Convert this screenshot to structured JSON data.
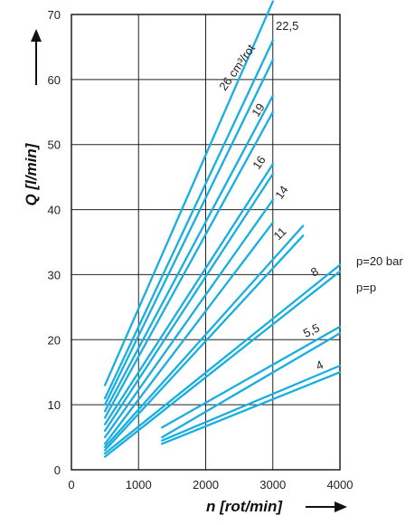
{
  "chart_data": {
    "type": "line",
    "xlabel": "n [rot/min]",
    "ylabel": "Q [l/min]",
    "xlim": [
      0,
      4000
    ],
    "ylim": [
      0,
      70
    ],
    "xticks": [
      0,
      1000,
      2000,
      3000,
      4000
    ],
    "yticks": [
      0,
      10,
      20,
      30,
      40,
      50,
      60,
      70
    ],
    "grid": true,
    "annotations": [
      "26 cm³/rot",
      "22,5",
      "19",
      "16",
      "14",
      "11",
      "8",
      "5,5",
      "4",
      "p=20 bar",
      "p=p"
    ],
    "series": [
      {
        "x": [
          500,
          3000
        ],
        "y": [
          13,
          72
        ]
      },
      {
        "x": [
          500,
          3000
        ],
        "y": [
          11,
          66
        ]
      },
      {
        "x": [
          500,
          3000
        ],
        "y": [
          10,
          63
        ]
      },
      {
        "x": [
          500,
          3000
        ],
        "y": [
          9,
          57.5
        ]
      },
      {
        "x": [
          500,
          3000
        ],
        "y": [
          8,
          55
        ]
      },
      {
        "x": [
          500,
          3000
        ],
        "y": [
          7,
          47
        ]
      },
      {
        "x": [
          500,
          3000
        ],
        "y": [
          6,
          45.5
        ]
      },
      {
        "x": [
          500,
          3000
        ],
        "y": [
          5,
          41.5
        ]
      },
      {
        "x": [
          500,
          3000
        ],
        "y": [
          4,
          38
        ]
      },
      {
        "x": [
          500,
          3450
        ],
        "y": [
          3.5,
          37.5
        ]
      },
      {
        "x": [
          500,
          3450
        ],
        "y": [
          3,
          36
        ]
      },
      {
        "x": [
          500,
          4000
        ],
        "y": [
          2.5,
          31.5
        ]
      },
      {
        "x": [
          500,
          4000
        ],
        "y": [
          2,
          30.5
        ]
      },
      {
        "x": [
          1350,
          4000
        ],
        "y": [
          6.5,
          22
        ]
      },
      {
        "x": [
          1350,
          4000
        ],
        "y": [
          5,
          21
        ]
      },
      {
        "x": [
          1350,
          4000
        ],
        "y": [
          4.5,
          16
        ]
      },
      {
        "x": [
          1350,
          4000
        ],
        "y": [
          4,
          15
        ]
      }
    ]
  }
}
